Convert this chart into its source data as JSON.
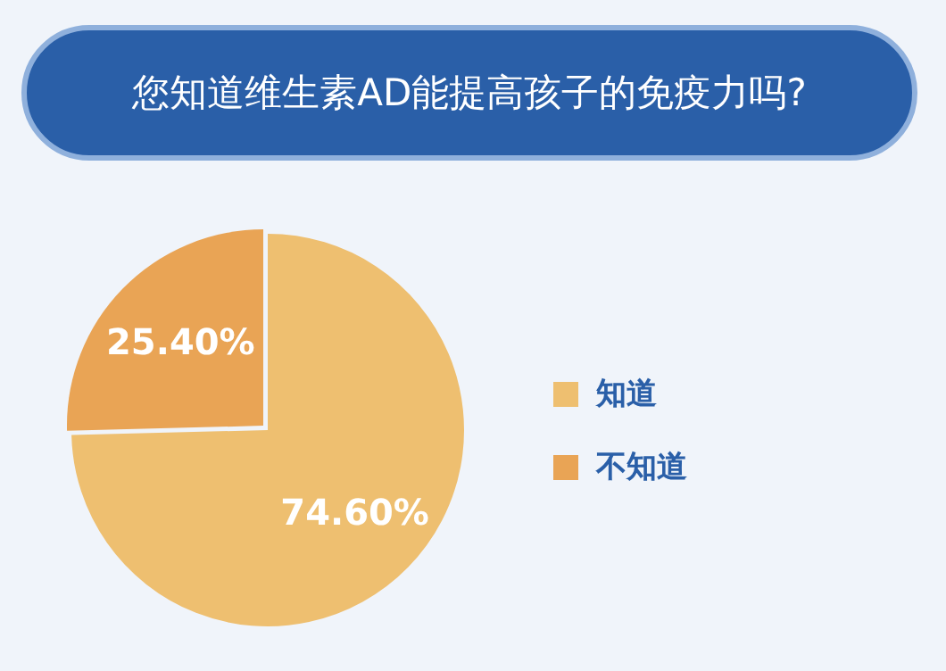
{
  "chart_data": {
    "type": "pie",
    "title": "您知道维生素AD能提高孩子的免疫力吗?",
    "categories": [
      "知道",
      "不知道"
    ],
    "values": [
      74.6,
      25.4
    ],
    "value_labels": [
      "74.60%",
      "25.40%"
    ],
    "colors": [
      "#eebf70",
      "#e9a455"
    ],
    "legend": "right"
  }
}
